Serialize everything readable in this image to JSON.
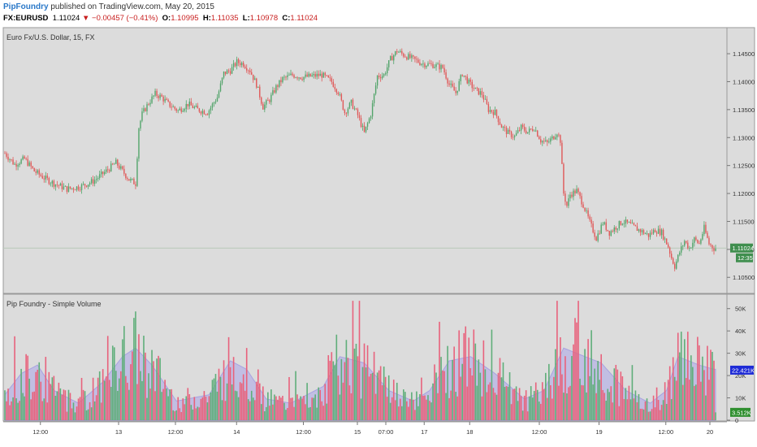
{
  "header": {
    "brand": "PipFoundry",
    "published": " published on TradingView.com, May 20, 2015",
    "symbol": "FX:EURUSD",
    "last": "1.11024",
    "change": "▼ −0.00457 (−0.41%)",
    "o_label": "O:",
    "o_value": "1.10995",
    "h_label": "H:",
    "h_value": "1.11035",
    "l_label": "L:",
    "l_value": "1.10978",
    "c_label": "C:",
    "c_value": "1.11024"
  },
  "colors": {
    "up": "#52a46a",
    "down": "#e05858",
    "volume_up": "#5fae7a",
    "volume_down": "#e8627c",
    "ma_fill": "#b8b4e6",
    "panel_bg": "#dcdcdc",
    "last_price_badge": "#3f8e4e",
    "vol_badge_blue": "#1e2bd6",
    "vol_badge_green": "#2f8f2f"
  },
  "chart_data": [
    {
      "type": "candlestick",
      "title": "Euro Fx/U.S. Dollar, 15, FX",
      "ylim": [
        1.103,
        1.1485
      ],
      "y_ticks": [
        "1.14500",
        "1.14000",
        "1.13500",
        "1.13000",
        "1.12500",
        "1.12000",
        "1.11500",
        "1.11000",
        "1.10500"
      ],
      "x_ticks": [
        "12:00",
        "13",
        "12:00",
        "14",
        "12:00",
        "15",
        "07:00",
        "17",
        "18",
        "12:00",
        "19",
        "12:00",
        "20"
      ],
      "last_price": "1.11024",
      "countdown": "12:35",
      "close_path": [
        {
          "i": 0,
          "v": 1.1272
        },
        {
          "i": 6,
          "v": 1.1252
        },
        {
          "i": 12,
          "v": 1.1262
        },
        {
          "i": 18,
          "v": 1.124
        },
        {
          "i": 24,
          "v": 1.1228
        },
        {
          "i": 30,
          "v": 1.1218
        },
        {
          "i": 38,
          "v": 1.1208
        },
        {
          "i": 46,
          "v": 1.1212
        },
        {
          "i": 54,
          "v": 1.1222
        },
        {
          "i": 62,
          "v": 1.124
        },
        {
          "i": 68,
          "v": 1.1255
        },
        {
          "i": 72,
          "v": 1.124
        },
        {
          "i": 76,
          "v": 1.1225
        },
        {
          "i": 80,
          "v": 1.1218
        },
        {
          "i": 82,
          "v": 1.1318
        },
        {
          "i": 84,
          "v": 1.1342
        },
        {
          "i": 88,
          "v": 1.1362
        },
        {
          "i": 92,
          "v": 1.1378
        },
        {
          "i": 96,
          "v": 1.1372
        },
        {
          "i": 100,
          "v": 1.136
        },
        {
          "i": 106,
          "v": 1.1348
        },
        {
          "i": 112,
          "v": 1.136
        },
        {
          "i": 118,
          "v": 1.135
        },
        {
          "i": 124,
          "v": 1.1345
        },
        {
          "i": 130,
          "v": 1.1372
        },
        {
          "i": 134,
          "v": 1.1415
        },
        {
          "i": 138,
          "v": 1.142
        },
        {
          "i": 142,
          "v": 1.1435
        },
        {
          "i": 146,
          "v": 1.1432
        },
        {
          "i": 150,
          "v": 1.142
        },
        {
          "i": 154,
          "v": 1.1395
        },
        {
          "i": 158,
          "v": 1.1355
        },
        {
          "i": 162,
          "v": 1.1368
        },
        {
          "i": 166,
          "v": 1.139
        },
        {
          "i": 170,
          "v": 1.1405
        },
        {
          "i": 176,
          "v": 1.1412
        },
        {
          "i": 182,
          "v": 1.1408
        },
        {
          "i": 188,
          "v": 1.141
        },
        {
          "i": 194,
          "v": 1.1412
        },
        {
          "i": 200,
          "v": 1.14
        },
        {
          "i": 204,
          "v": 1.1382
        },
        {
          "i": 208,
          "v": 1.1345
        },
        {
          "i": 212,
          "v": 1.1362
        },
        {
          "i": 216,
          "v": 1.134
        },
        {
          "i": 220,
          "v": 1.1308
        },
        {
          "i": 224,
          "v": 1.1342
        },
        {
          "i": 228,
          "v": 1.141
        },
        {
          "i": 232,
          "v": 1.1412
        },
        {
          "i": 236,
          "v": 1.144
        },
        {
          "i": 240,
          "v": 1.1455
        },
        {
          "i": 244,
          "v": 1.1448
        },
        {
          "i": 250,
          "v": 1.144
        },
        {
          "i": 256,
          "v": 1.1432
        },
        {
          "i": 262,
          "v": 1.143
        },
        {
          "i": 268,
          "v": 1.1425
        },
        {
          "i": 272,
          "v": 1.1395
        },
        {
          "i": 276,
          "v": 1.138
        },
        {
          "i": 280,
          "v": 1.1415
        },
        {
          "i": 284,
          "v": 1.1398
        },
        {
          "i": 288,
          "v": 1.1385
        },
        {
          "i": 292,
          "v": 1.1378
        },
        {
          "i": 296,
          "v": 1.135
        },
        {
          "i": 300,
          "v": 1.1345
        },
        {
          "i": 304,
          "v": 1.132
        },
        {
          "i": 308,
          "v": 1.1308
        },
        {
          "i": 312,
          "v": 1.1302
        },
        {
          "i": 316,
          "v": 1.1318
        },
        {
          "i": 320,
          "v": 1.131
        },
        {
          "i": 324,
          "v": 1.1318
        },
        {
          "i": 328,
          "v": 1.1295
        },
        {
          "i": 332,
          "v": 1.129
        },
        {
          "i": 336,
          "v": 1.1302
        },
        {
          "i": 338,
          "v": 1.131
        },
        {
          "i": 340,
          "v": 1.1295
        },
        {
          "i": 342,
          "v": 1.12
        },
        {
          "i": 344,
          "v": 1.1178
        },
        {
          "i": 346,
          "v": 1.1198
        },
        {
          "i": 350,
          "v": 1.1205
        },
        {
          "i": 354,
          "v": 1.118
        },
        {
          "i": 358,
          "v": 1.1148
        },
        {
          "i": 362,
          "v": 1.112
        },
        {
          "i": 366,
          "v": 1.1148
        },
        {
          "i": 370,
          "v": 1.113
        },
        {
          "i": 374,
          "v": 1.114
        },
        {
          "i": 378,
          "v": 1.115
        },
        {
          "i": 382,
          "v": 1.1145
        },
        {
          "i": 386,
          "v": 1.1138
        },
        {
          "i": 390,
          "v": 1.1132
        },
        {
          "i": 394,
          "v": 1.1125
        },
        {
          "i": 398,
          "v": 1.1135
        },
        {
          "i": 402,
          "v": 1.113
        },
        {
          "i": 406,
          "v": 1.1105
        },
        {
          "i": 408,
          "v": 1.1085
        },
        {
          "i": 410,
          "v": 1.107
        },
        {
          "i": 413,
          "v": 1.1095
        },
        {
          "i": 416,
          "v": 1.1115
        },
        {
          "i": 419,
          "v": 1.1102
        },
        {
          "i": 422,
          "v": 1.1118
        },
        {
          "i": 425,
          "v": 1.111
        },
        {
          "i": 428,
          "v": 1.1138
        },
        {
          "i": 431,
          "v": 1.111
        },
        {
          "i": 434,
          "v": 1.1102
        }
      ]
    },
    {
      "type": "bar",
      "title": "Pip Foundry - Simple Volume",
      "ylim": [
        0,
        55000
      ],
      "y_ticks": [
        "50K",
        "40K",
        "30K",
        "20K",
        "10K",
        "0"
      ],
      "last_volume_ma": "22.421K",
      "last_volume": "3.512K",
      "volume_profile": [
        {
          "i": 0,
          "v": 12000
        },
        {
          "i": 10,
          "v": 22000
        },
        {
          "i": 20,
          "v": 26000
        },
        {
          "i": 30,
          "v": 14000
        },
        {
          "i": 45,
          "v": 8000
        },
        {
          "i": 60,
          "v": 18000
        },
        {
          "i": 72,
          "v": 30000
        },
        {
          "i": 80,
          "v": 34000
        },
        {
          "i": 90,
          "v": 26000
        },
        {
          "i": 105,
          "v": 9000
        },
        {
          "i": 125,
          "v": 12000
        },
        {
          "i": 138,
          "v": 28000
        },
        {
          "i": 148,
          "v": 24000
        },
        {
          "i": 160,
          "v": 10000
        },
        {
          "i": 175,
          "v": 8000
        },
        {
          "i": 195,
          "v": 16000
        },
        {
          "i": 205,
          "v": 30000
        },
        {
          "i": 220,
          "v": 27000
        },
        {
          "i": 235,
          "v": 14000
        },
        {
          "i": 250,
          "v": 9000
        },
        {
          "i": 260,
          "v": 14000
        },
        {
          "i": 272,
          "v": 28000
        },
        {
          "i": 285,
          "v": 30000
        },
        {
          "i": 300,
          "v": 22000
        },
        {
          "i": 318,
          "v": 10000
        },
        {
          "i": 330,
          "v": 14000
        },
        {
          "i": 342,
          "v": 34000
        },
        {
          "i": 355,
          "v": 30000
        },
        {
          "i": 365,
          "v": 27000
        },
        {
          "i": 380,
          "v": 14000
        },
        {
          "i": 395,
          "v": 8000
        },
        {
          "i": 405,
          "v": 14000
        },
        {
          "i": 412,
          "v": 30000
        },
        {
          "i": 425,
          "v": 26000
        },
        {
          "i": 434,
          "v": 24000
        }
      ]
    }
  ]
}
